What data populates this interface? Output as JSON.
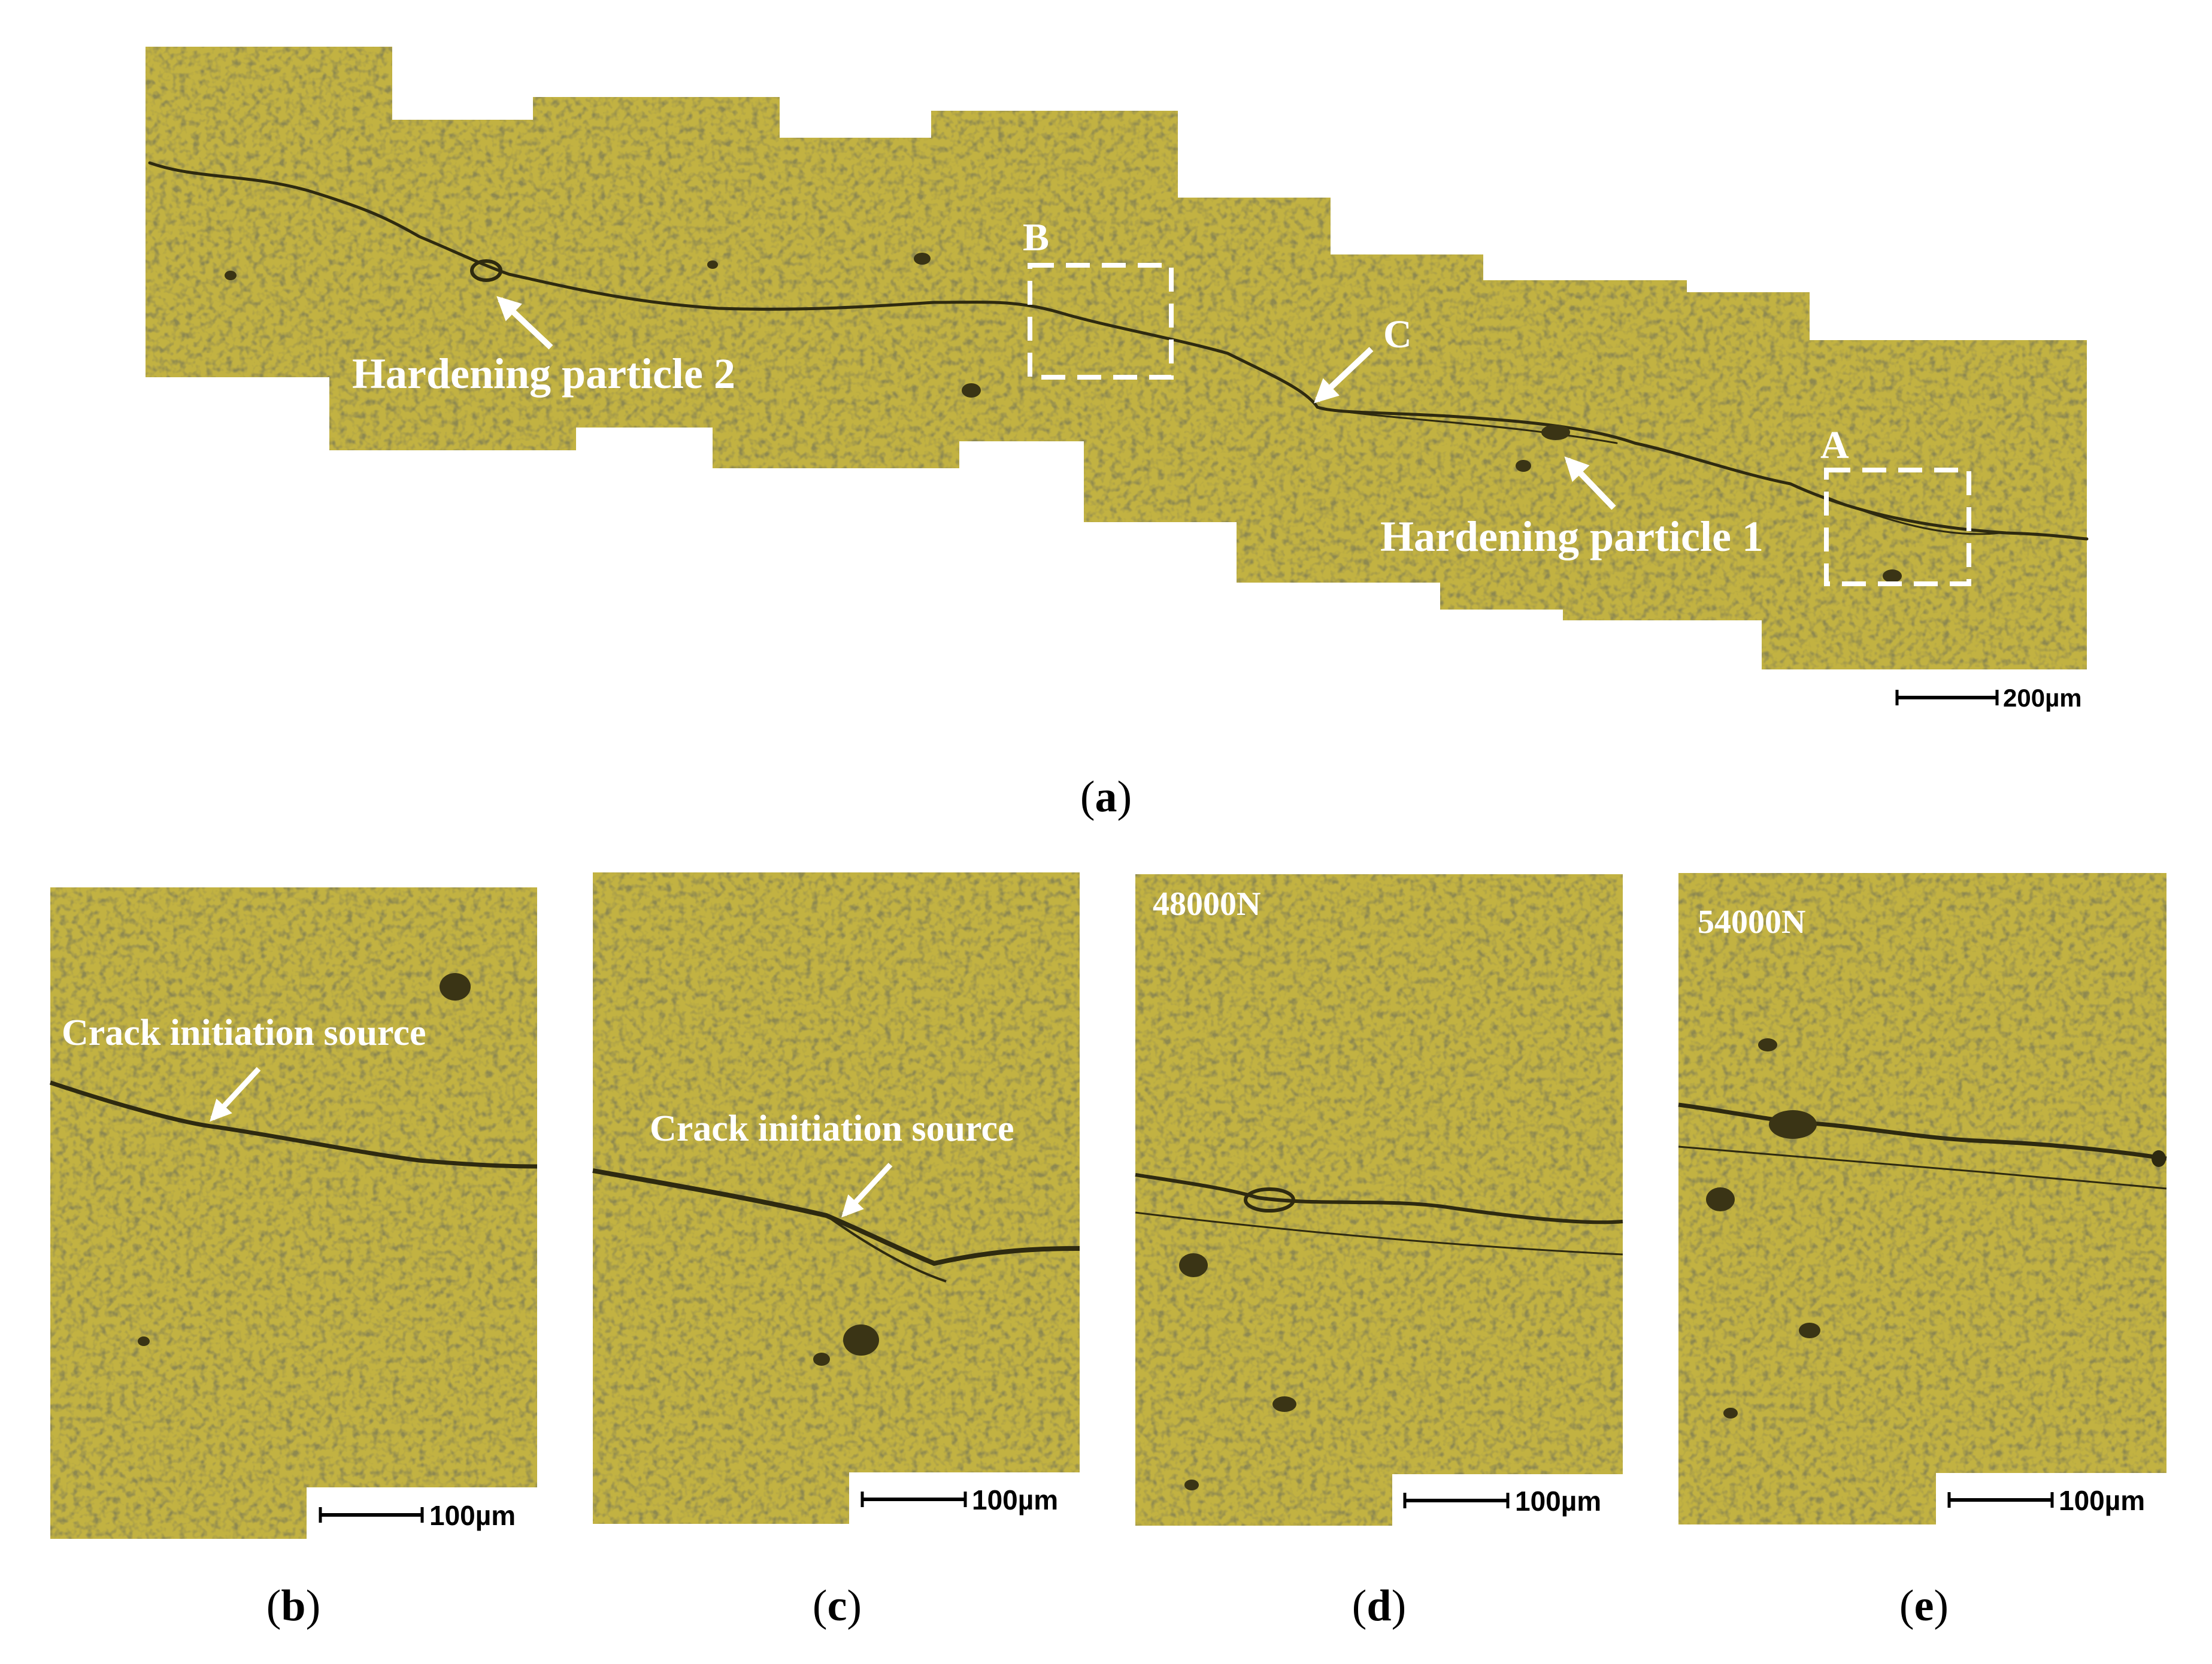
{
  "panel_a": {
    "particle2_label": "Hardening particle 2",
    "particle1_label": "Hardening particle 1",
    "box_a_label": "A",
    "box_b_label": "B",
    "point_c_label": "C",
    "scalebar_label": "200µm",
    "caption_open": "(",
    "caption_letter": "a",
    "caption_close": ")"
  },
  "panel_b": {
    "annotation": "Crack initiation source",
    "scalebar_label": "100µm",
    "caption_open": "(",
    "caption_letter": "b",
    "caption_close": ")"
  },
  "panel_c": {
    "annotation": "Crack initiation source",
    "scalebar_label": "100µm",
    "caption_open": "(",
    "caption_letter": "c",
    "caption_close": ")"
  },
  "panel_d": {
    "load_label": "48000N",
    "scalebar_label": "100µm",
    "caption_open": "(",
    "caption_letter": "d",
    "caption_close": ")"
  },
  "panel_e": {
    "load_label": "54000N",
    "scalebar_label": "100µm",
    "caption_open": "(",
    "caption_letter": "e",
    "caption_close": ")"
  },
  "colors": {
    "micrograph_base": "#a59a35",
    "micrograph_light": "#c8b845",
    "micrograph_dark": "#6b6422",
    "crack": "#2e2a10",
    "annotation": "#ffffff"
  }
}
